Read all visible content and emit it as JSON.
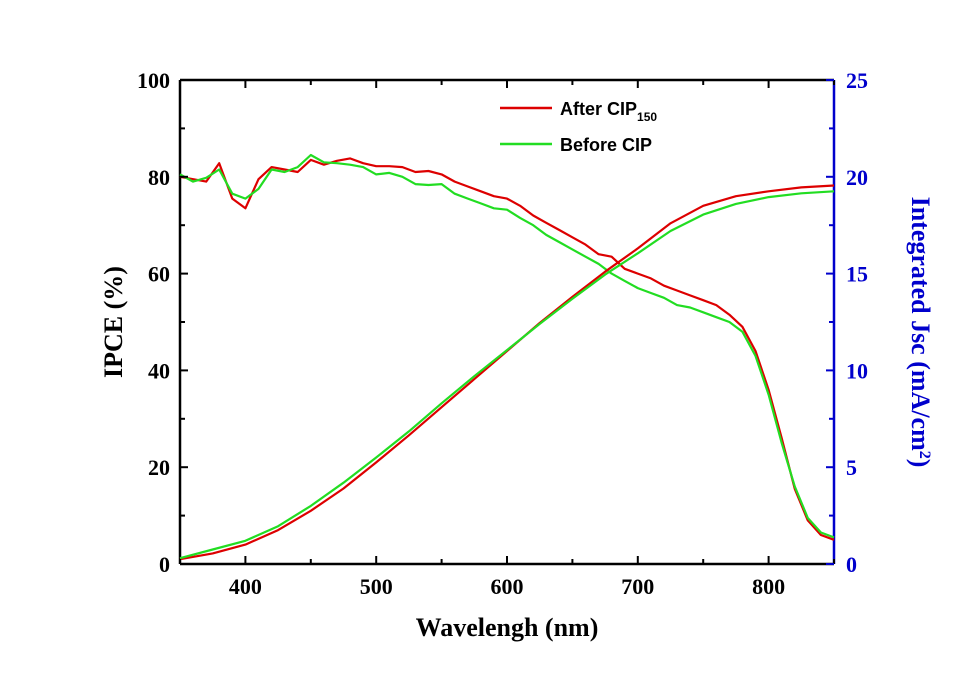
{
  "chart_data": {
    "type": "line",
    "xlabel": "Wavelengh (nm)",
    "ylabel_left": "IPCE (%)",
    "ylabel_right": "Integrated Jsc (mA/cm²)",
    "ylabel_right_main": "Integrated Jsc (mA/cm",
    "ylabel_right_sup": "2",
    "ylabel_right_close": ")",
    "xlim": [
      350,
      850
    ],
    "ylim_left": [
      0,
      100
    ],
    "ylim_right": [
      0,
      25
    ],
    "x_ticks": [
      400,
      500,
      600,
      700,
      800
    ],
    "y_left_ticks": [
      0,
      20,
      40,
      60,
      80,
      100
    ],
    "y_right_ticks": [
      0,
      5,
      10,
      15,
      20,
      25
    ],
    "grid": false,
    "legend_position": "top-right",
    "right_axis_color": "#0000cc",
    "legend": [
      {
        "label": "After CIP",
        "subscript": "150",
        "color": "#dd0000"
      },
      {
        "label": "Before CIP",
        "subscript": "",
        "color": "#22dd22"
      }
    ],
    "series": [
      {
        "name": "After CIP150 IPCE",
        "axis": "left",
        "color": "#dd0000",
        "x": [
          350,
          360,
          370,
          380,
          390,
          400,
          410,
          420,
          430,
          440,
          450,
          460,
          470,
          480,
          490,
          500,
          510,
          520,
          530,
          540,
          550,
          560,
          570,
          580,
          590,
          600,
          610,
          620,
          630,
          640,
          650,
          660,
          670,
          680,
          690,
          700,
          710,
          720,
          730,
          740,
          750,
          760,
          770,
          780,
          790,
          800,
          810,
          820,
          830,
          840,
          850
        ],
        "y": [
          80.0,
          79.5,
          79.0,
          82.8,
          75.5,
          73.5,
          79.5,
          82.0,
          81.5,
          81.0,
          83.5,
          82.5,
          83.3,
          83.8,
          82.8,
          82.2,
          82.2,
          82.0,
          81.0,
          81.2,
          80.5,
          79.0,
          78.0,
          77.0,
          76.0,
          75.5,
          74.0,
          72.0,
          70.5,
          69.0,
          67.5,
          66.0,
          64.0,
          63.5,
          61.0,
          60.0,
          59.0,
          57.5,
          56.5,
          55.5,
          54.5,
          53.5,
          51.5,
          49.0,
          44.0,
          36.0,
          26.0,
          15.5,
          9.0,
          6.0,
          5.0
        ]
      },
      {
        "name": "Before CIP IPCE",
        "axis": "left",
        "color": "#22dd22",
        "x": [
          350,
          360,
          370,
          380,
          390,
          400,
          410,
          420,
          430,
          440,
          450,
          460,
          470,
          480,
          490,
          500,
          510,
          520,
          530,
          540,
          550,
          560,
          570,
          580,
          590,
          600,
          610,
          620,
          630,
          640,
          650,
          660,
          670,
          680,
          690,
          700,
          710,
          720,
          730,
          740,
          750,
          760,
          770,
          780,
          790,
          800,
          810,
          820,
          830,
          840,
          850
        ],
        "y": [
          80.5,
          79.0,
          79.8,
          81.5,
          76.5,
          75.5,
          77.5,
          81.5,
          81.0,
          82.0,
          84.5,
          83.0,
          82.8,
          82.5,
          82.0,
          80.5,
          80.8,
          80.0,
          78.5,
          78.3,
          78.5,
          76.5,
          75.5,
          74.5,
          73.5,
          73.2,
          71.5,
          70.0,
          68.0,
          66.5,
          65.0,
          63.5,
          62.0,
          60.0,
          58.5,
          57.0,
          56.0,
          55.0,
          53.5,
          53.0,
          52.0,
          51.0,
          50.0,
          48.0,
          43.0,
          35.0,
          25.0,
          16.0,
          9.5,
          6.5,
          5.5
        ]
      },
      {
        "name": "After CIP150 Integrated Jsc",
        "axis": "right",
        "color": "#dd0000",
        "x": [
          350,
          375,
          400,
          425,
          450,
          475,
          500,
          525,
          550,
          575,
          600,
          625,
          650,
          675,
          700,
          725,
          750,
          775,
          800,
          825,
          850
        ],
        "y": [
          0.25,
          0.55,
          1.0,
          1.75,
          2.75,
          3.9,
          5.25,
          6.65,
          8.1,
          9.55,
          11.0,
          12.45,
          13.8,
          15.1,
          16.3,
          17.6,
          18.5,
          19.0,
          19.25,
          19.45,
          19.55
        ]
      },
      {
        "name": "Before CIP Integrated Jsc",
        "axis": "right",
        "color": "#22dd22",
        "x": [
          350,
          375,
          400,
          425,
          450,
          475,
          500,
          525,
          550,
          575,
          600,
          625,
          650,
          675,
          700,
          725,
          750,
          775,
          800,
          825,
          850
        ],
        "y": [
          0.3,
          0.75,
          1.2,
          1.95,
          3.0,
          4.2,
          5.5,
          6.85,
          8.3,
          9.7,
          11.05,
          12.4,
          13.7,
          14.95,
          16.05,
          17.2,
          18.05,
          18.6,
          18.95,
          19.15,
          19.25
        ]
      }
    ]
  }
}
